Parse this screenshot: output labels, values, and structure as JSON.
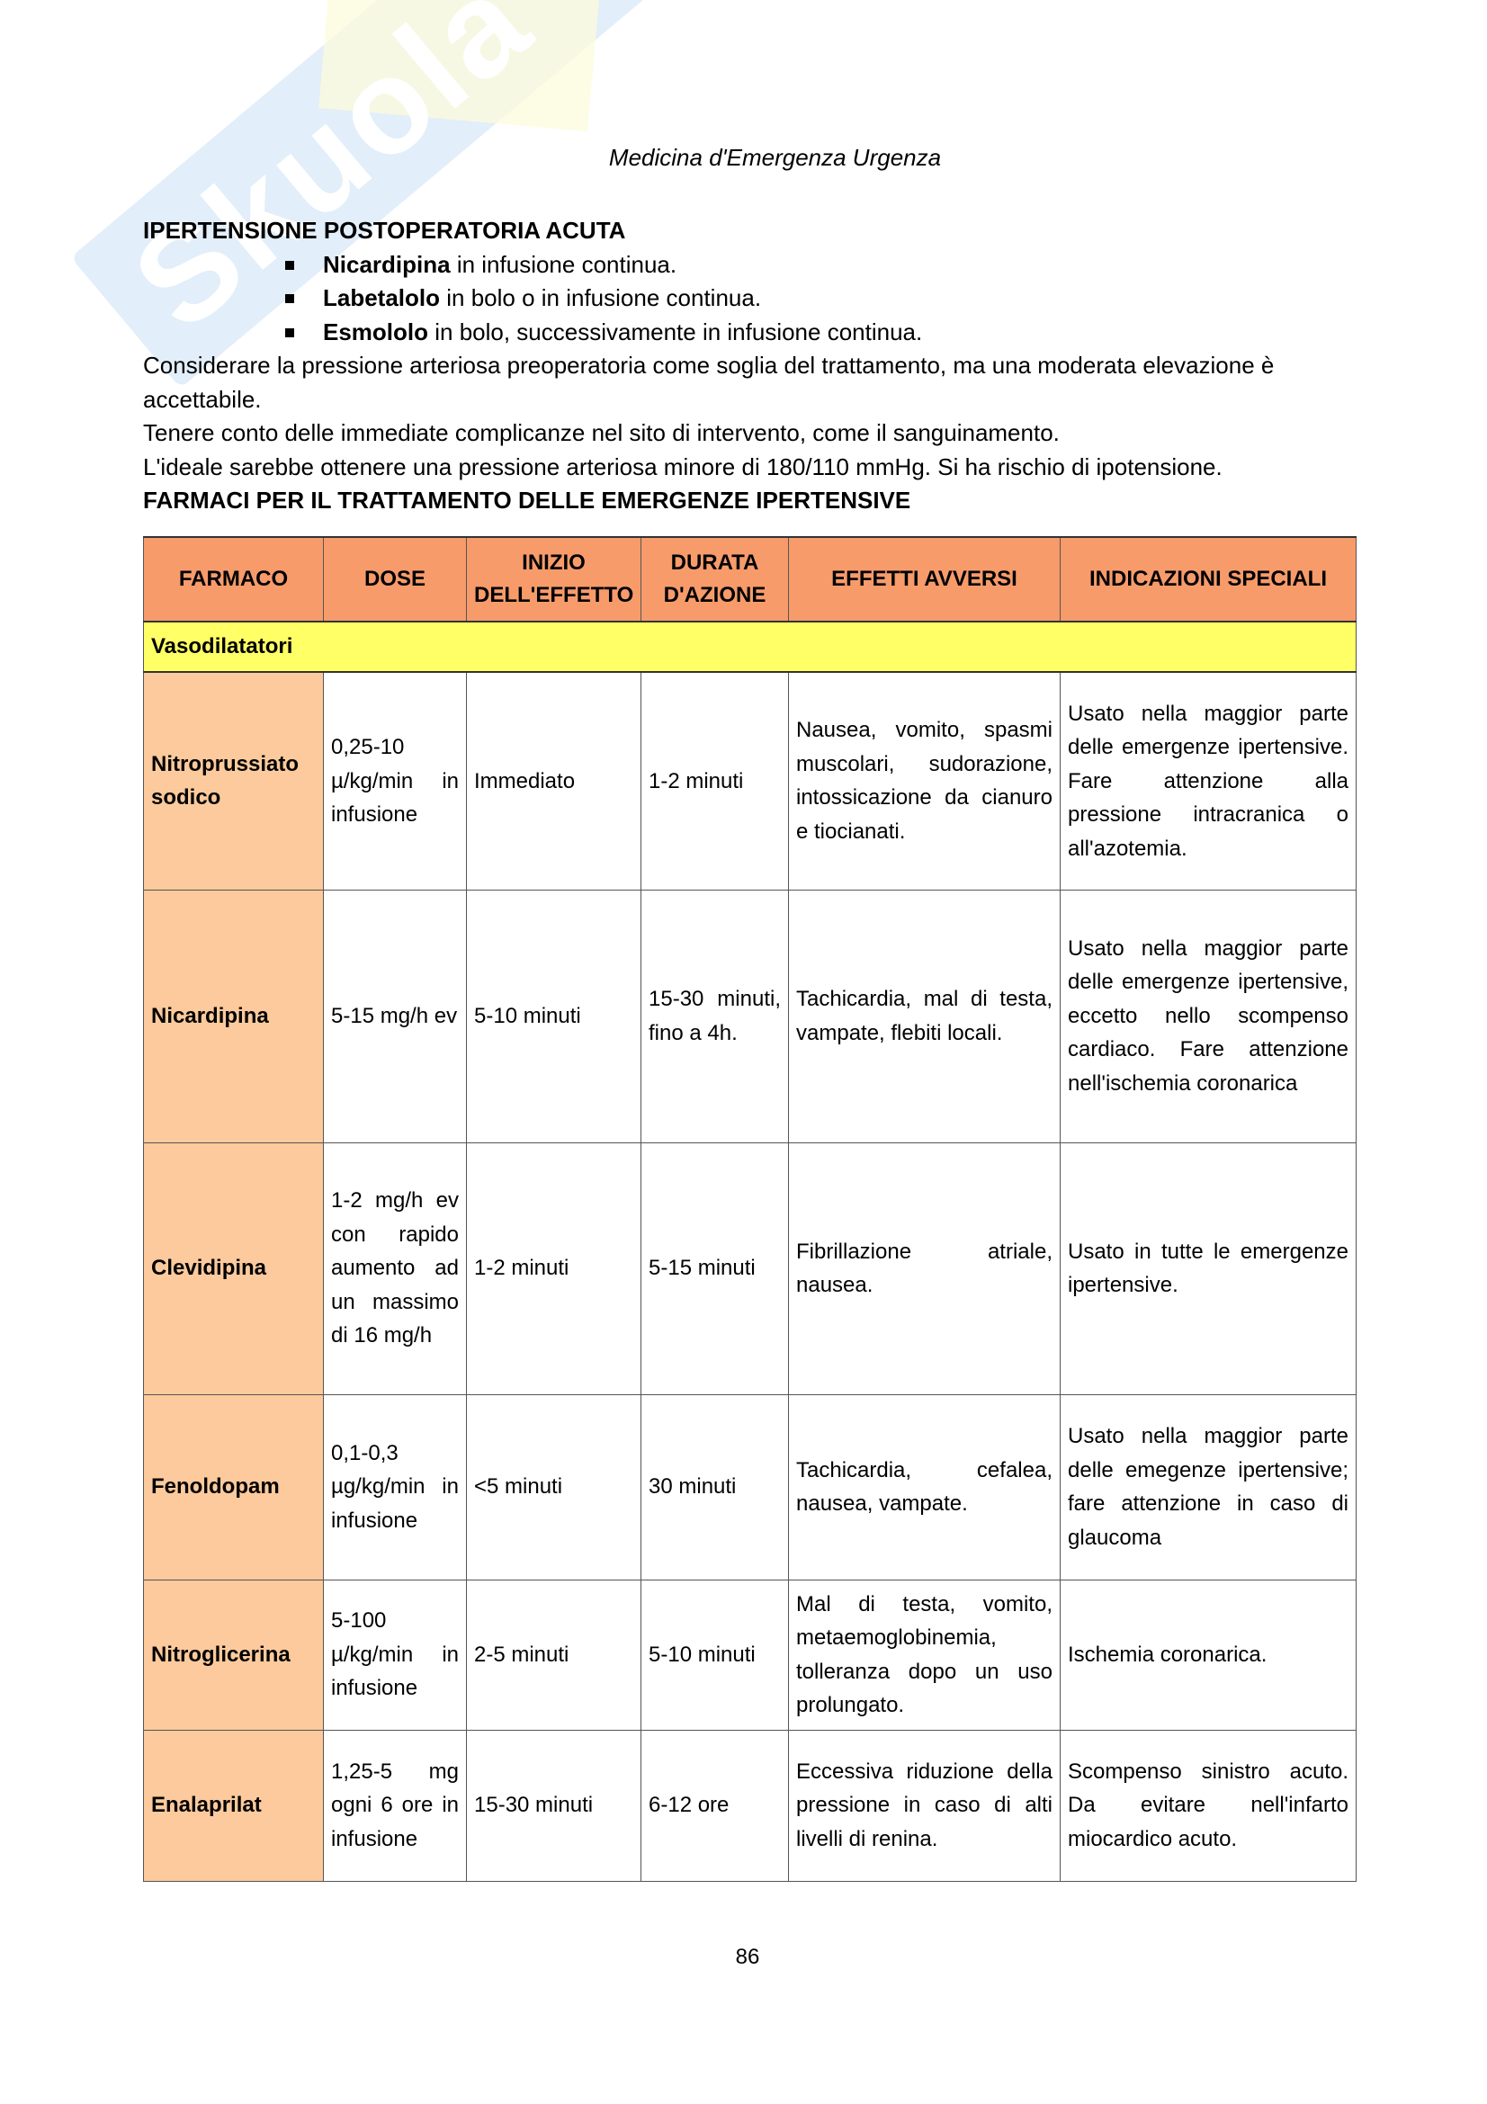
{
  "watermark": "Skuola.net",
  "header": "Medicina d'Emergenza Urgenza",
  "section_title": "IPERTENSIONE POSTOPERATORIA ACUTA",
  "bullets": [
    {
      "bold": "Nicardipina",
      "text": " in infusione continua."
    },
    {
      "bold": "Labetalolo",
      "text": " in bolo o in infusione continua."
    },
    {
      "bold": "Esmololo",
      "text": " in bolo, successivamente in infusione continua."
    }
  ],
  "paragraphs": [
    "Considerare la pressione arteriosa preoperatoria come soglia del trattamento, ma una moderata elevazione è accettabile.",
    "Tenere conto delle immediate complicanze nel sito di intervento, come il sanguinamento.",
    "L'ideale sarebbe ottenere una pressione arteriosa minore di 180/110 mmHg. Si ha rischio di ipotensione."
  ],
  "table_title": "FARMACI PER IL TRATTAMENTO DELLE EMERGENZE IPERTENSIVE",
  "table": {
    "headers": [
      "FARMACO",
      "DOSE",
      "INIZIO DELL'EFFETTO",
      "DURATA D'AZIONE",
      "EFFETTI AVVERSI",
      "INDICAZIONI SPECIALI"
    ],
    "category": "Vasodilatatori",
    "rows": [
      [
        "Nitroprussiato sodico",
        "0,25-10 µ/kg/min in infusione",
        "Immediato",
        "1-2 minuti",
        "Nausea, vomito, spasmi muscolari, sudorazione, intossicazione da cianuro e tiocianati.",
        "Usato nella maggior parte delle emergenze ipertensive. Fare attenzione alla pressione intracranica o all'azotemia."
      ],
      [
        "Nicardipina",
        "5-15 mg/h ev",
        "5-10 minuti",
        "15-30 minuti, fino a 4h.",
        "Tachicardia, mal di testa, vampate, flebiti locali.",
        "Usato nella maggior parte delle emergenze ipertensive, eccetto nello scompenso cardiaco. Fare attenzione nell'ischemia coronarica"
      ],
      [
        "Clevidipina",
        "1-2 mg/h ev con rapido aumento ad un massimo di 16 mg/h",
        "1-2 minuti",
        "5-15 minuti",
        "Fibrillazione atriale, nausea.",
        "Usato in tutte le emergenze ipertensive."
      ],
      [
        "Fenoldopam",
        "0,1-0,3 µg/kg/min in infusione",
        "<5 minuti",
        "30 minuti",
        "Tachicardia, cefalea, nausea, vampate.",
        "Usato nella maggior parte delle emegenze ipertensive; fare attenzione in caso di glaucoma"
      ],
      [
        "Nitroglicerina",
        "5-100 µ/kg/min in infusione",
        "2-5 minuti",
        "5-10 minuti",
        "Mal di testa, vomito, metaemoglobinemia, tolleranza dopo un uso prolungato.",
        "Ischemia coronarica."
      ],
      [
        "Enalaprilat",
        "1,25-5 mg ogni 6 ore in infusione",
        "15-30 minuti",
        "6-12 ore",
        "Eccessiva riduzione della pressione in caso di alti livelli di renina.",
        "Scompenso sinistro acuto. Da evitare nell'infarto miocardico acuto."
      ]
    ]
  },
  "page_number": "86",
  "colors": {
    "header_bg": "#f79b6b",
    "category_bg": "#ffff66",
    "drug_bg": "#fcca9c"
  }
}
